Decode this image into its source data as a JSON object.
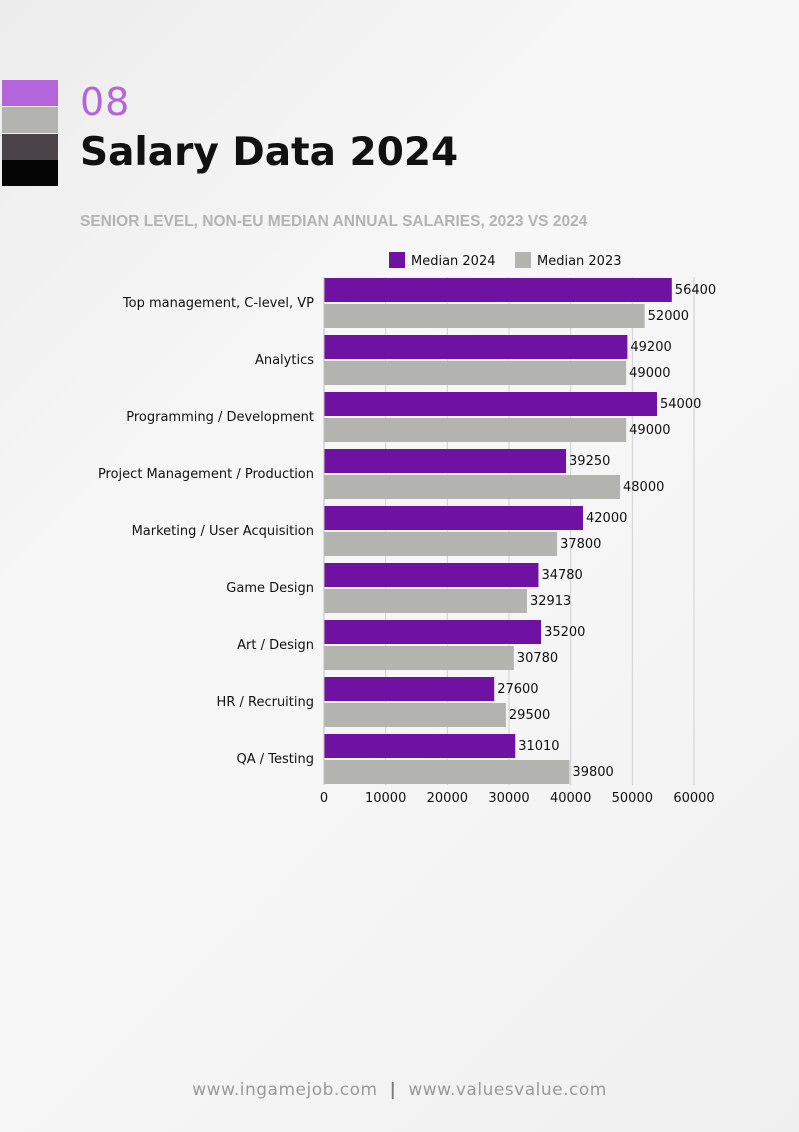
{
  "header": {
    "section_number": "08",
    "title": "Salary Data 2024",
    "subtitle": "SENIOR LEVEL, NON-EU MEDIAN ANNUAL SALARIES, 2023 VS 2024"
  },
  "colors": {
    "swatches": [
      "#b565dc",
      "#b3b3b0",
      "#4a4448",
      "#050505"
    ],
    "median_2024": "#6f12a3",
    "median_2023": "#b3b3b0",
    "accent": "#b565dc"
  },
  "chart_data": {
    "type": "bar",
    "orientation": "horizontal",
    "categories": [
      "Top management, C-level, VP",
      "Analytics",
      "Programming / Development",
      "Project Management / Production",
      "Marketing / User Acquisition",
      "Game Design",
      "Art / Design",
      "HR / Recruiting",
      "QA / Testing"
    ],
    "series": [
      {
        "name": "Median 2024",
        "values": [
          56400,
          49200,
          54000,
          39250,
          42000,
          34780,
          35200,
          27600,
          31010
        ]
      },
      {
        "name": "Median 2023",
        "values": [
          52000,
          49000,
          49000,
          48000,
          37800,
          32913,
          30780,
          29500,
          39800
        ]
      }
    ],
    "xlim": [
      0,
      60000
    ],
    "xticks": [
      "0",
      "10000",
      "20000",
      "30000",
      "40000",
      "50000",
      "60000"
    ],
    "grid": true,
    "legend_position": "top",
    "data_labels": true
  },
  "footer": {
    "left_text": "www.ingamejob.com",
    "separator": "|",
    "right_text": "www.valuesvalue.com"
  }
}
